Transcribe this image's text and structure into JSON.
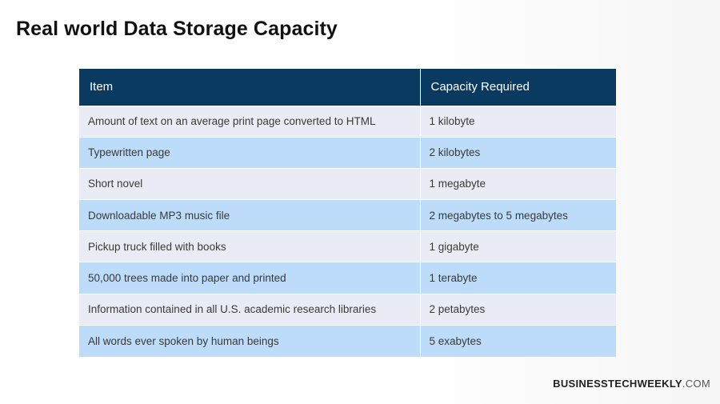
{
  "slide": {
    "title": "Real world Data Storage Capacity",
    "brand_name": "BUSINESSTECHWEEKLY",
    "brand_domain": ".COM"
  },
  "table": {
    "headers": [
      "Item",
      "Capacity Required"
    ],
    "rows": [
      {
        "item": "Amount of text on an average print page converted to HTML",
        "capacity": "1 kilobyte"
      },
      {
        "item": "Typewritten page",
        "capacity": "2 kilobytes"
      },
      {
        "item": "Short novel",
        "capacity": "1 megabyte"
      },
      {
        "item": "Downloadable MP3 music file",
        "capacity": "2 megabytes to 5 megabytes"
      },
      {
        "item": "Pickup truck filled with books",
        "capacity": "1 gigabyte"
      },
      {
        "item": "50,000 trees made into paper and printed",
        "capacity": "1 terabyte"
      },
      {
        "item": "Information contained in all U.S. academic research libraries",
        "capacity": "2 petabytes"
      },
      {
        "item": "All words ever spoken by human beings",
        "capacity": "5 exabytes"
      }
    ]
  },
  "colors": {
    "header_bg": "#0b3a61",
    "row_light": "#e9ecf4",
    "row_blue": "#bcdcfa"
  }
}
